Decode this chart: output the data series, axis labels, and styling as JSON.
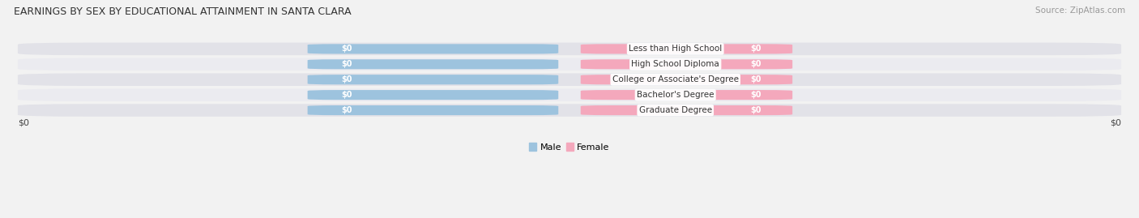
{
  "title": "EARNINGS BY SEX BY EDUCATIONAL ATTAINMENT IN SANTA CLARA",
  "source": "Source: ZipAtlas.com",
  "categories": [
    "Less than High School",
    "High School Diploma",
    "College or Associate's Degree",
    "Bachelor's Degree",
    "Graduate Degree"
  ],
  "male_values": [
    0,
    0,
    0,
    0,
    0
  ],
  "female_values": [
    0,
    0,
    0,
    0,
    0
  ],
  "male_color": "#9dc3de",
  "female_color": "#f4a8bc",
  "male_label": "Male",
  "female_label": "Female",
  "xlabel_left": "$0",
  "xlabel_right": "$0",
  "title_fontsize": 9,
  "source_fontsize": 7.5,
  "value_fontsize": 7,
  "cat_fontsize": 7.5,
  "legend_fontsize": 8,
  "tick_fontsize": 8,
  "background_color": "#f2f2f2",
  "row_bg_color": "#e2e2e8",
  "row_bg_light": "#ebebf0"
}
